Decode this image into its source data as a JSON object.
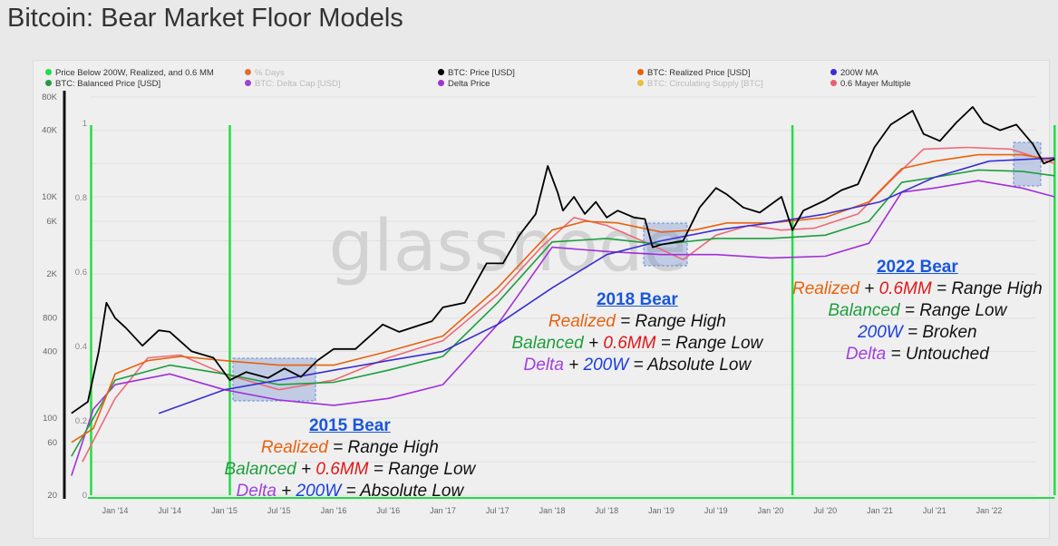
{
  "title": "Bitcoin: Bear Market Floor Models",
  "legend": [
    {
      "label": "Price Below 200W, Realized, and 0.6 MM",
      "color": "#22dd44",
      "dim": false
    },
    {
      "label": "BTC: Balanced Price [USD]",
      "color": "#1e9e3e",
      "dim": false
    },
    {
      "label": "% Days",
      "color": "#e07030",
      "dim": true
    },
    {
      "label": "BTC: Delta Cap [USD]",
      "color": "#9a44d0",
      "dim": true
    },
    {
      "label": "BTC: Price [USD]",
      "color": "#000000",
      "dim": false
    },
    {
      "label": "Delta Price",
      "color": "#a22fd8",
      "dim": false
    },
    {
      "label": "BTC: Realized Price [USD]",
      "color": "#e8620e",
      "dim": false
    },
    {
      "label": "BTC: Circulating Supply [BTC]",
      "color": "#e8c040",
      "dim": true
    },
    {
      "label": "200W MA",
      "color": "#3a2fd0",
      "dim": false
    },
    {
      "label": "0.6 Mayer Multiple",
      "color": "#e86070",
      "dim": false
    }
  ],
  "watermark": "glassnode",
  "annotations": [
    {
      "heading": "2015 Bear",
      "lines": [
        [
          [
            "Realized",
            "#e8620e"
          ],
          [
            " = Range High",
            "#111"
          ]
        ],
        [
          [
            "Balanced",
            "#1e9e3e"
          ],
          [
            " + ",
            "#111"
          ],
          [
            "0.6MM",
            "#e01818"
          ],
          [
            " = Range Low",
            "#111"
          ]
        ],
        [
          [
            "Delta",
            "#a23fe0"
          ],
          [
            " + ",
            "#111"
          ],
          [
            "200W",
            "#1a3fe0"
          ],
          [
            " = Absolute Low",
            "#111"
          ]
        ]
      ]
    },
    {
      "heading": "2018 Bear",
      "lines": [
        [
          [
            "Realized",
            "#e8620e"
          ],
          [
            " = Range High",
            "#111"
          ]
        ],
        [
          [
            "Balanced",
            "#1e9e3e"
          ],
          [
            " + ",
            "#111"
          ],
          [
            "0.6MM",
            "#e01818"
          ],
          [
            " = Range Low",
            "#111"
          ]
        ],
        [
          [
            "Delta",
            "#a23fe0"
          ],
          [
            " + ",
            "#111"
          ],
          [
            "200W",
            "#1a3fe0"
          ],
          [
            " = Absolute Low",
            "#111"
          ]
        ]
      ]
    },
    {
      "heading": "2022 Bear",
      "lines": [
        [
          [
            "Realized",
            "#e8620e"
          ],
          [
            " + ",
            "#111"
          ],
          [
            "0.6MM",
            "#e01818"
          ],
          [
            " = Range High",
            "#111"
          ]
        ],
        [
          [
            "Balanced",
            "#1e9e3e"
          ],
          [
            " = Range Low",
            "#111"
          ]
        ],
        [
          [
            "200W",
            "#1a3fe0"
          ],
          [
            " = Broken",
            "#111"
          ]
        ],
        [
          [
            "Delta",
            "#a23fe0"
          ],
          [
            " = Untouched",
            "#111"
          ]
        ]
      ]
    }
  ],
  "chart_data": {
    "type": "line",
    "title": "Bitcoin: Bear Market Floor Models",
    "yscale": "log",
    "ylim": [
      20,
      80000
    ],
    "yticks_left": [
      "80K",
      "40K",
      "10K",
      "6K",
      "2K",
      "800",
      "400",
      "100",
      "60",
      "20"
    ],
    "ytick_values_left": [
      80000,
      40000,
      10000,
      6000,
      2000,
      800,
      400,
      100,
      60,
      20
    ],
    "yticks_right": [
      "1",
      "0.8",
      "0.6",
      "0.4",
      "0.2",
      "0"
    ],
    "ylim_right": [
      0,
      1
    ],
    "xlim": [
      2013.55,
      2022.75
    ],
    "xticks": [
      "Jan '14",
      "Jul '14",
      "Jan '15",
      "Jul '15",
      "Jan '16",
      "Jul '16",
      "Jan '17",
      "Jul '17",
      "Jan '18",
      "Jul '18",
      "Jan '19",
      "Jul '19",
      "Jan '20",
      "Jul '20",
      "Jan '21",
      "Jul '21",
      "Jan '22"
    ],
    "xtick_values": [
      2014,
      2014.5,
      2015,
      2015.5,
      2016,
      2016.5,
      2017,
      2017.5,
      2018,
      2018.5,
      2019,
      2019.5,
      2020,
      2020.5,
      2021,
      2021.5,
      2022
    ],
    "indicator_dates": [
      2013.78,
      2015.05,
      2020.2,
      2022.6
    ],
    "series": [
      {
        "name": "0.6 Mayer Multiple",
        "color": "#ec6a78",
        "x": [
          2013.7,
          2014.0,
          2014.3,
          2014.6,
          2015.0,
          2015.5,
          2016.0,
          2016.5,
          2017.0,
          2017.5,
          2017.9,
          2018.2,
          2018.5,
          2018.9,
          2019.2,
          2019.5,
          2019.8,
          2020.1,
          2020.4,
          2020.8,
          2021.1,
          2021.4,
          2021.8,
          2022.2,
          2022.6
        ],
        "y": [
          40,
          150,
          350,
          370,
          250,
          180,
          220,
          350,
          500,
          1300,
          3500,
          6500,
          5500,
          3700,
          2700,
          4500,
          5500,
          5000,
          5200,
          7000,
          14000,
          27000,
          28000,
          27000,
          20000
        ]
      },
      {
        "name": "Delta Price",
        "color": "#a22fd8",
        "x": [
          2013.6,
          2013.8,
          2014.0,
          2014.5,
          2015.0,
          2015.5,
          2016.0,
          2016.5,
          2017.0,
          2017.5,
          2018.0,
          2018.5,
          2019.0,
          2019.5,
          2020.0,
          2020.5,
          2020.9,
          2021.2,
          2021.5,
          2021.9,
          2022.3,
          2022.6
        ],
        "y": [
          30,
          120,
          200,
          250,
          180,
          145,
          130,
          150,
          200,
          700,
          3500,
          3200,
          3000,
          3000,
          2800,
          2900,
          3800,
          11000,
          12000,
          14000,
          12000,
          10000
        ]
      },
      {
        "name": "BTC: Balanced Price [USD]",
        "color": "#1e9e3e",
        "x": [
          2013.6,
          2014.0,
          2014.5,
          2015.0,
          2015.5,
          2016.0,
          2016.5,
          2017.0,
          2017.5,
          2018.0,
          2018.5,
          2019.0,
          2019.5,
          2020.0,
          2020.5,
          2020.9,
          2021.2,
          2021.5,
          2021.9,
          2022.3,
          2022.6
        ],
        "y": [
          45,
          220,
          300,
          250,
          200,
          210,
          270,
          360,
          1100,
          3900,
          4200,
          3700,
          4200,
          4200,
          4500,
          6000,
          13500,
          15000,
          17500,
          17000,
          15500
        ]
      },
      {
        "name": "BTC: Realized Price [USD]",
        "color": "#e8620e",
        "x": [
          2013.6,
          2013.8,
          2014.0,
          2014.3,
          2014.6,
          2015.0,
          2015.5,
          2016.0,
          2016.5,
          2017.0,
          2017.5,
          2018.0,
          2018.3,
          2018.6,
          2019.0,
          2019.3,
          2019.6,
          2020.0,
          2020.5,
          2020.9,
          2021.2,
          2021.5,
          2021.9,
          2022.3,
          2022.6
        ],
        "y": [
          60,
          80,
          250,
          330,
          360,
          330,
          300,
          300,
          400,
          550,
          1500,
          5000,
          6000,
          5800,
          4800,
          5000,
          5800,
          5800,
          6500,
          9000,
          18000,
          21000,
          24000,
          24000,
          21500
        ]
      },
      {
        "name": "200W MA",
        "color": "#3a2fd0",
        "x": [
          2014.4,
          2015.0,
          2015.5,
          2016.0,
          2016.5,
          2017.0,
          2017.5,
          2018.0,
          2018.5,
          2019.0,
          2019.5,
          2020.0,
          2020.5,
          2021.0,
          2021.5,
          2022.0,
          2022.6
        ],
        "y": [
          110,
          180,
          220,
          270,
          330,
          400,
          700,
          1500,
          3000,
          4000,
          5000,
          5800,
          7000,
          9000,
          15000,
          21000,
          22500
        ]
      },
      {
        "name": "BTC: Price [USD]",
        "color": "#000000",
        "x": [
          2013.6,
          2013.75,
          2013.85,
          2013.92,
          2014.0,
          2014.1,
          2014.25,
          2014.4,
          2014.5,
          2014.7,
          2014.9,
          2015.05,
          2015.2,
          2015.4,
          2015.55,
          2015.7,
          2015.85,
          2016.0,
          2016.2,
          2016.45,
          2016.6,
          2016.9,
          2017.0,
          2017.2,
          2017.4,
          2017.55,
          2017.7,
          2017.85,
          2017.96,
          2018.05,
          2018.1,
          2018.2,
          2018.3,
          2018.4,
          2018.5,
          2018.6,
          2018.75,
          2018.85,
          2018.92,
          2019.0,
          2019.2,
          2019.35,
          2019.5,
          2019.6,
          2019.75,
          2019.9,
          2020.1,
          2020.2,
          2020.3,
          2020.5,
          2020.65,
          2020.8,
          2020.95,
          2021.1,
          2021.3,
          2021.4,
          2021.55,
          2021.7,
          2021.85,
          2021.95,
          2022.1,
          2022.25,
          2022.4,
          2022.5,
          2022.6
        ],
        "y": [
          110,
          140,
          400,
          1100,
          800,
          650,
          450,
          620,
          600,
          400,
          350,
          220,
          260,
          230,
          280,
          235,
          330,
          420,
          420,
          700,
          600,
          750,
          1000,
          1100,
          2500,
          2500,
          4500,
          7000,
          19000,
          11000,
          7500,
          10000,
          7000,
          9000,
          6500,
          7500,
          6500,
          6300,
          3500,
          3700,
          4000,
          8000,
          12000,
          10500,
          8000,
          7200,
          10000,
          5000,
          7500,
          9300,
          11500,
          13000,
          28000,
          45000,
          60000,
          37000,
          32000,
          47000,
          65000,
          47000,
          40000,
          45000,
          30000,
          20000,
          22000
        ]
      }
    ]
  }
}
